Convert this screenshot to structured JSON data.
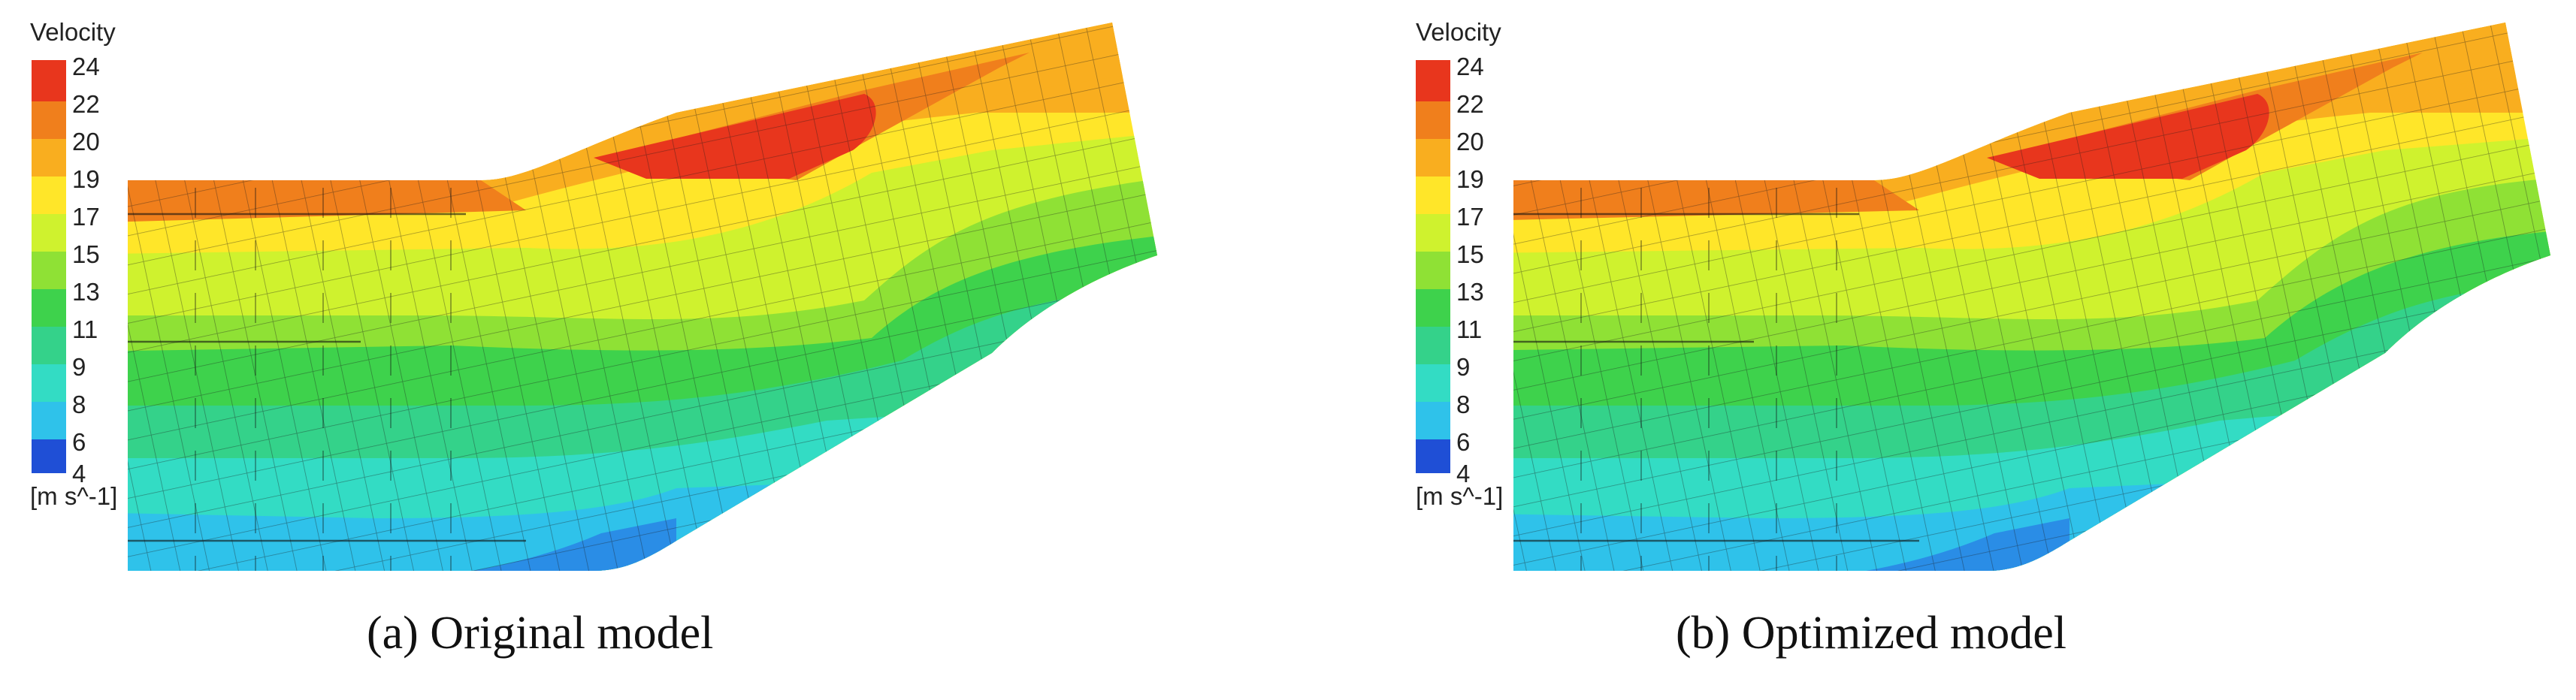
{
  "figure": {
    "panels": [
      {
        "id": "a",
        "caption": "(a) Original model",
        "legend": {
          "title": "Velocity",
          "unit": "[m s^-1]",
          "ticks": [
            "24",
            "22",
            "20",
            "19",
            "17",
            "15",
            "13",
            "11",
            "9",
            "8",
            "6",
            "4"
          ]
        }
      },
      {
        "id": "b",
        "caption": "(b) Optimized model",
        "legend": {
          "title": "Velocity",
          "unit": "[m s^-1]",
          "ticks": [
            "24",
            "22",
            "20",
            "19",
            "17",
            "15",
            "13",
            "11",
            "9",
            "8",
            "6",
            "4"
          ]
        }
      }
    ],
    "colormap": [
      "#e8361d",
      "#f07f1c",
      "#f9ae1f",
      "#ffe629",
      "#cff22e",
      "#8fe135",
      "#3ed24c",
      "#34d28a",
      "#33dcc4",
      "#2fc2ea",
      "#2a8de6",
      "#1f4fd6"
    ],
    "velocity_range": [
      4,
      24
    ]
  }
}
